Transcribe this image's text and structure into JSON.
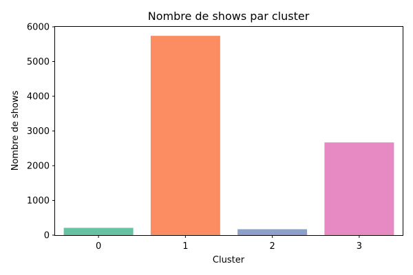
{
  "chart_data": {
    "type": "bar",
    "title": "Nombre de shows par cluster",
    "xlabel": "Cluster",
    "ylabel": "Nombre de shows",
    "categories": [
      "0",
      "1",
      "2",
      "3"
    ],
    "values": [
      210,
      5740,
      170,
      2670
    ],
    "ylim": [
      0,
      6000
    ],
    "yticks": [
      "0",
      "1000",
      "2000",
      "3000",
      "4000",
      "5000",
      "6000"
    ],
    "colors": [
      "#66c2a5",
      "#fc8d62",
      "#8da0cb",
      "#e78ac3"
    ],
    "grid": false,
    "legend": "none"
  }
}
